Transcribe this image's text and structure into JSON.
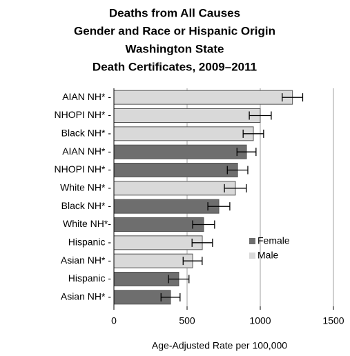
{
  "chart_data": {
    "type": "bar",
    "orientation": "horizontal",
    "title": [
      "Deaths from All Causes",
      "Gender and Race or Hispanic Origin",
      "Washington State",
      "Death Certificates, 2009–2011"
    ],
    "xlabel": "Age-Adjusted Rate per 100,000",
    "categories": [
      "AIAN NH* -",
      "NHOPI NH* -",
      "Black NH* -",
      "AIAN NH* -",
      "NHOPI NH* -",
      "White NH* -",
      "Black NH* -",
      "White NH*-",
      "Hispanic -",
      "Asian NH* -",
      "Hispanic -",
      "Asian NH* -"
    ],
    "series": [
      {
        "name": "Female",
        "color": "#6e6e6e",
        "values": [
          null,
          null,
          null,
          906,
          845,
          null,
          717,
          613,
          null,
          null,
          443,
          387
        ],
        "errors": [
          null,
          null,
          null,
          65,
          70,
          null,
          75,
          75,
          null,
          null,
          70,
          65
        ]
      },
      {
        "name": "Male",
        "color": "#d9d9d9",
        "values": [
          1220,
          1000,
          953,
          null,
          null,
          830,
          null,
          null,
          604,
          538,
          null,
          null
        ],
        "errors": [
          70,
          75,
          70,
          null,
          null,
          75,
          null,
          null,
          70,
          65,
          null,
          null
        ]
      }
    ],
    "xlim": [
      0,
      1500
    ],
    "xticks": [
      0,
      500,
      1000,
      1500
    ],
    "grid": true
  }
}
